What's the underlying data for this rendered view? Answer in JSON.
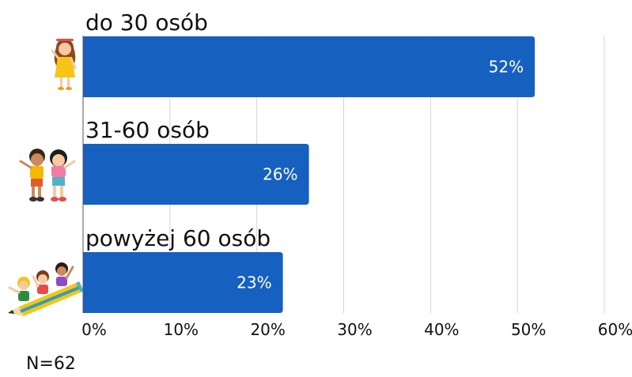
{
  "chart_data": {
    "type": "bar",
    "orientation": "horizontal",
    "categories": [
      "do 30 osób",
      "31-60 osób",
      "powyżej 60 osób"
    ],
    "values": [
      52,
      26,
      23
    ],
    "value_labels": [
      "52%",
      "26%",
      "23%"
    ],
    "xlim": [
      0,
      60
    ],
    "xticks": [
      "0%",
      "10%",
      "20%",
      "30%",
      "40%",
      "50%",
      "60%"
    ],
    "grid": true,
    "bar_color": "#1660C0",
    "label_color": "#ffffff",
    "icons": [
      "girl-icon",
      "two-kids-icon",
      "kids-on-pencil-icon"
    ]
  },
  "note": "N=62"
}
